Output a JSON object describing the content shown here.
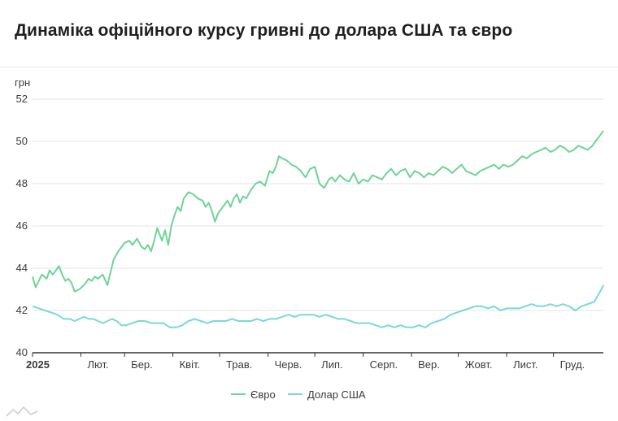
{
  "title": "Динаміка офіційного курсу гривні до долара США та євро",
  "colors": {
    "euro": "#6fd39a",
    "usd": "#79d9d4",
    "grid": "#e3e3e3",
    "axis": "#333333",
    "text": "#3a3a3a"
  },
  "chart_data": {
    "type": "line",
    "ylabel": "грн",
    "ylim": [
      40,
      52
    ],
    "yticks": [
      "40",
      "42",
      "44",
      "46",
      "48",
      "50",
      "52"
    ],
    "xlim": [
      0,
      366
    ],
    "xticks": [
      {
        "x": 0,
        "label": "2025"
      },
      {
        "x": 31,
        "label": "Лют."
      },
      {
        "x": 59,
        "label": "Бер."
      },
      {
        "x": 90,
        "label": "Квіт."
      },
      {
        "x": 120,
        "label": "Трав."
      },
      {
        "x": 151,
        "label": "Черв."
      },
      {
        "x": 181,
        "label": "Лип."
      },
      {
        "x": 212,
        "label": "Серп."
      },
      {
        "x": 243,
        "label": "Вер."
      },
      {
        "x": 273,
        "label": "Жовт."
      },
      {
        "x": 304,
        "label": "Лист."
      },
      {
        "x": 334,
        "label": "Груд."
      }
    ],
    "legend_position": "bottom",
    "series": [
      {
        "name": "Євро",
        "color": "#6fd39a",
        "x": [
          0,
          2,
          4,
          6,
          9,
          11,
          13,
          15,
          17,
          19,
          21,
          23,
          25,
          27,
          30,
          33,
          36,
          38,
          40,
          42,
          45,
          48,
          50,
          52,
          55,
          57,
          59,
          62,
          64,
          67,
          70,
          72,
          74,
          76,
          78,
          80,
          83,
          85,
          87,
          89,
          91,
          93,
          95,
          97,
          100,
          103,
          106,
          109,
          111,
          113,
          115,
          117,
          119,
          121,
          123,
          125,
          127,
          129,
          131,
          133,
          135,
          137,
          140,
          143,
          146,
          149,
          152,
          154,
          156,
          158,
          160,
          163,
          166,
          169,
          172,
          175,
          178,
          181,
          184,
          187,
          190,
          192,
          194,
          197,
          200,
          203,
          206,
          209,
          212,
          215,
          218,
          221,
          224,
          227,
          230,
          233,
          236,
          239,
          242,
          245,
          248,
          251,
          254,
          257,
          260,
          263,
          266,
          269,
          272,
          275,
          278,
          281,
          284,
          287,
          290,
          293,
          296,
          299,
          302,
          305,
          308,
          311,
          314,
          317,
          320,
          323,
          326,
          329,
          332,
          335,
          338,
          341,
          344,
          347,
          350,
          353,
          356,
          359,
          362,
          364,
          366
        ],
        "y": [
          43.6,
          43.1,
          43.4,
          43.7,
          43.5,
          43.9,
          43.7,
          43.9,
          44.1,
          43.7,
          43.4,
          43.5,
          43.3,
          42.9,
          43.0,
          43.2,
          43.5,
          43.4,
          43.6,
          43.5,
          43.7,
          43.2,
          43.8,
          44.4,
          44.8,
          45.0,
          45.2,
          45.3,
          45.1,
          45.4,
          45.0,
          44.9,
          45.1,
          44.8,
          45.3,
          45.9,
          45.3,
          45.8,
          45.1,
          46.0,
          46.5,
          46.9,
          46.7,
          47.3,
          47.6,
          47.5,
          47.3,
          47.2,
          46.9,
          47.1,
          46.7,
          46.2,
          46.6,
          46.8,
          47.0,
          47.2,
          46.9,
          47.3,
          47.5,
          47.1,
          47.4,
          47.3,
          47.7,
          48.0,
          48.1,
          47.9,
          48.6,
          48.5,
          48.8,
          49.3,
          49.2,
          49.1,
          48.9,
          48.8,
          48.6,
          48.3,
          48.7,
          48.8,
          48.0,
          47.8,
          48.2,
          48.3,
          48.1,
          48.4,
          48.2,
          48.1,
          48.5,
          48.0,
          48.2,
          48.1,
          48.4,
          48.3,
          48.2,
          48.5,
          48.7,
          48.4,
          48.6,
          48.7,
          48.3,
          48.6,
          48.5,
          48.3,
          48.5,
          48.4,
          48.6,
          48.8,
          48.7,
          48.5,
          48.7,
          48.9,
          48.6,
          48.5,
          48.4,
          48.6,
          48.7,
          48.8,
          48.9,
          48.7,
          48.9,
          48.8,
          48.9,
          49.1,
          49.3,
          49.2,
          49.4,
          49.5,
          49.6,
          49.7,
          49.5,
          49.6,
          49.8,
          49.7,
          49.5,
          49.6,
          49.8,
          49.7,
          49.6,
          49.8,
          50.1,
          50.3,
          50.5
        ]
      },
      {
        "name": "Долар США",
        "color": "#79d9d4",
        "x": [
          0,
          4,
          8,
          12,
          16,
          20,
          24,
          27,
          30,
          33,
          36,
          39,
          42,
          45,
          48,
          51,
          54,
          57,
          60,
          64,
          68,
          72,
          76,
          80,
          84,
          88,
          92,
          96,
          100,
          104,
          108,
          112,
          116,
          120,
          124,
          128,
          132,
          136,
          140,
          144,
          148,
          152,
          156,
          160,
          164,
          168,
          172,
          176,
          180,
          184,
          188,
          192,
          196,
          200,
          204,
          208,
          212,
          216,
          220,
          224,
          228,
          232,
          236,
          240,
          244,
          248,
          252,
          256,
          260,
          264,
          268,
          272,
          276,
          280,
          284,
          288,
          292,
          296,
          300,
          304,
          308,
          312,
          316,
          320,
          324,
          328,
          332,
          336,
          340,
          344,
          348,
          352,
          356,
          360,
          364,
          366
        ],
        "y": [
          42.2,
          42.1,
          42.0,
          41.9,
          41.8,
          41.6,
          41.6,
          41.5,
          41.6,
          41.7,
          41.6,
          41.6,
          41.5,
          41.4,
          41.5,
          41.6,
          41.5,
          41.3,
          41.3,
          41.4,
          41.5,
          41.5,
          41.4,
          41.4,
          41.4,
          41.2,
          41.2,
          41.3,
          41.5,
          41.6,
          41.5,
          41.4,
          41.5,
          41.5,
          41.5,
          41.6,
          41.5,
          41.5,
          41.5,
          41.6,
          41.5,
          41.6,
          41.6,
          41.7,
          41.8,
          41.7,
          41.8,
          41.8,
          41.8,
          41.7,
          41.8,
          41.7,
          41.6,
          41.6,
          41.5,
          41.4,
          41.4,
          41.4,
          41.3,
          41.2,
          41.3,
          41.2,
          41.3,
          41.2,
          41.2,
          41.3,
          41.2,
          41.4,
          41.5,
          41.6,
          41.8,
          41.9,
          42.0,
          42.1,
          42.2,
          42.2,
          42.1,
          42.2,
          42.0,
          42.1,
          42.1,
          42.1,
          42.2,
          42.3,
          42.2,
          42.2,
          42.3,
          42.2,
          42.3,
          42.2,
          42.0,
          42.2,
          42.3,
          42.4,
          42.9,
          43.2
        ]
      }
    ]
  }
}
